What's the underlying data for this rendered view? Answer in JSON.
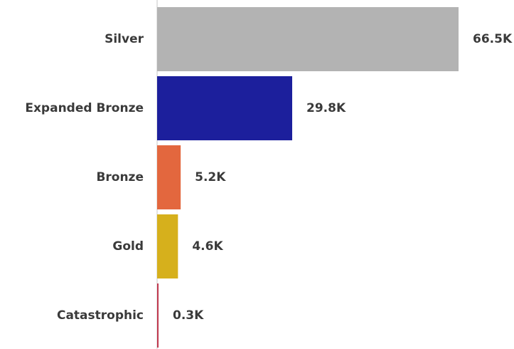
{
  "chart_data": {
    "type": "bar",
    "orientation": "horizontal",
    "categories": [
      "Silver",
      "Expanded Bronze",
      "Bronze",
      "Gold",
      "Catastrophic"
    ],
    "values": [
      66.5,
      29.8,
      5.2,
      4.6,
      0.3
    ],
    "value_labels": [
      "66.5K",
      "29.8K",
      "5.2K",
      "4.6K",
      "0.3K"
    ],
    "value_unit": "K",
    "colors": [
      "#b3b3b3",
      "#1c1f9c",
      "#e3673e",
      "#d6b01c",
      "#c0384e"
    ],
    "title": "",
    "xlabel": "",
    "ylabel": "",
    "grid": false,
    "legend": "none"
  }
}
